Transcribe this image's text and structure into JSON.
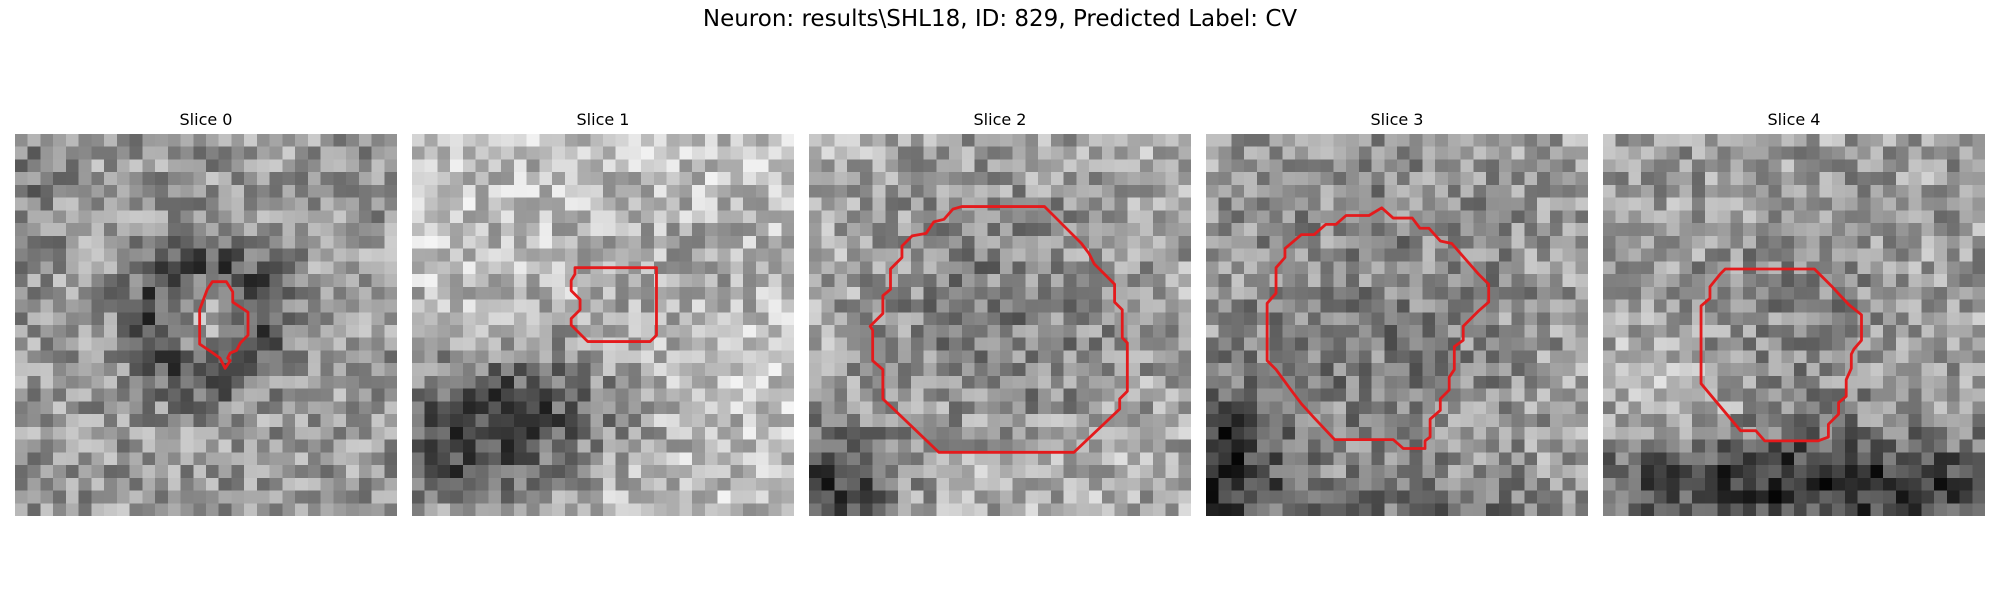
{
  "figure": {
    "title": "Neuron: results\\SHL18, ID: 829, Predicted Label: CV"
  },
  "slices": [
    {
      "title": "Slice 0"
    },
    {
      "title": "Slice 1"
    },
    {
      "title": "Slice 2"
    },
    {
      "title": "Slice 3"
    },
    {
      "title": "Slice 4"
    }
  ],
  "colors": {
    "contour": "#e41a1c",
    "colormap": "gray"
  }
}
